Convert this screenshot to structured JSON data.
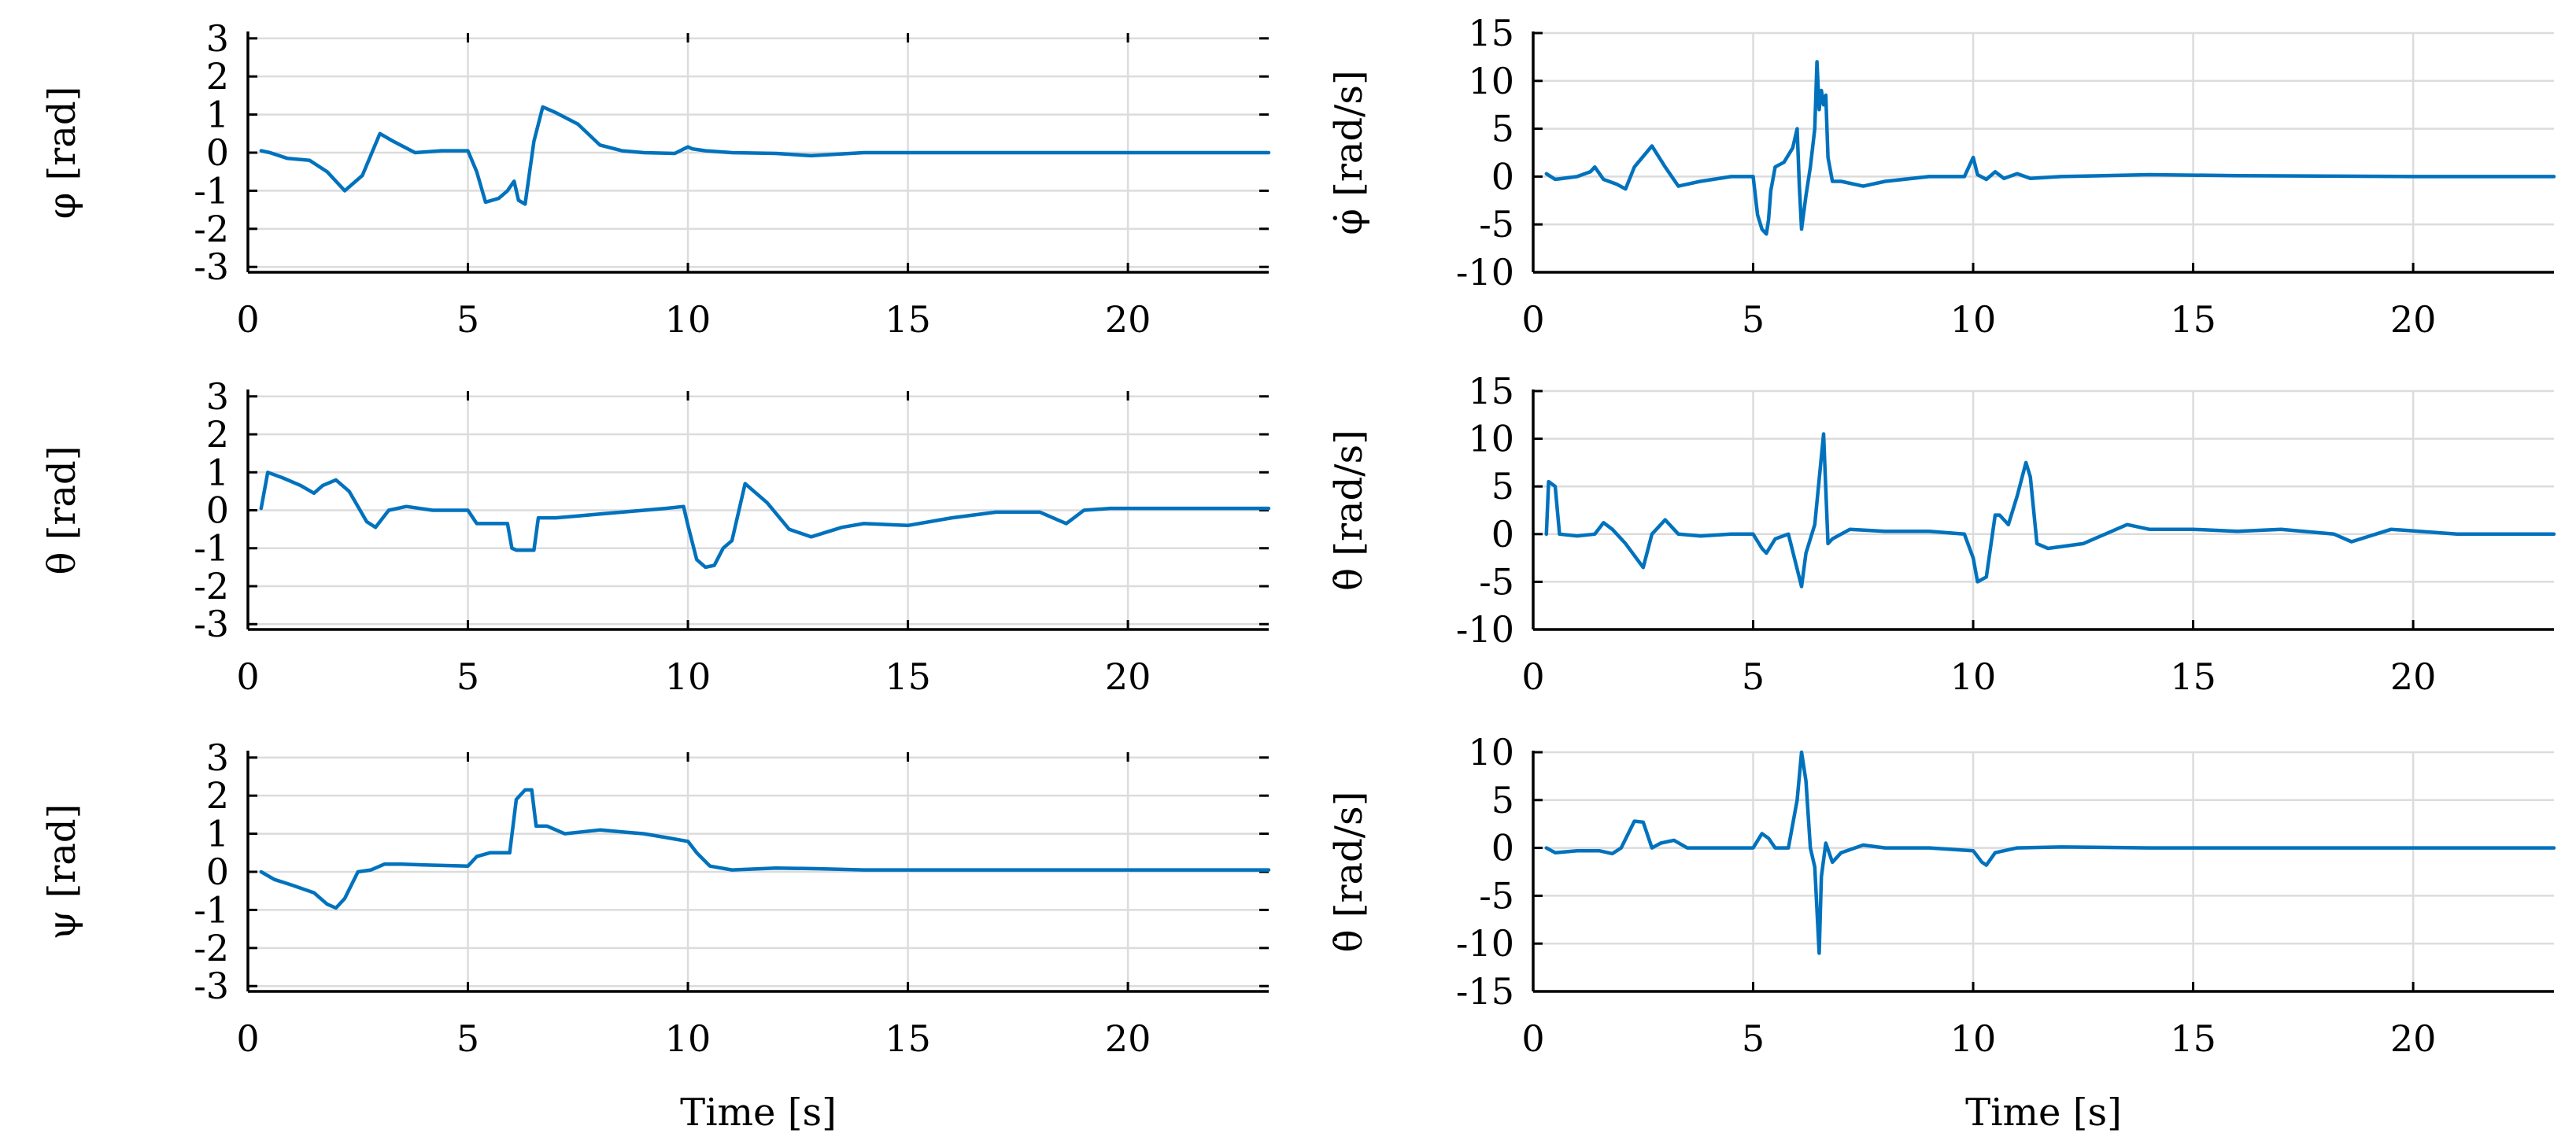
{
  "colors": {
    "line": "#0072BD",
    "grid": "#dcdcdc",
    "axis": "#000000"
  },
  "xlabel": "Time [s]",
  "chart_data": [
    {
      "type": "line",
      "ylabel": "φ [rad]",
      "xlim": [
        0,
        23.2
      ],
      "ylim": [
        -3.14,
        3.14
      ],
      "xticks": [
        0,
        5,
        10,
        15,
        20
      ],
      "xtick_labels": [
        "0",
        "5",
        "10",
        "15",
        "20"
      ],
      "yticks": [
        3,
        2,
        1,
        0,
        -1,
        -2,
        -3
      ],
      "ytick_labels": [
        "3",
        "2",
        "1",
        "0",
        "-1",
        "-2",
        "-3"
      ],
      "x": [
        0.3,
        0.5,
        0.9,
        1.4,
        1.8,
        2.2,
        2.6,
        3.0,
        3.3,
        3.8,
        4.4,
        5.0,
        5.2,
        5.4,
        5.7,
        5.9,
        6.05,
        6.15,
        6.3,
        6.5,
        6.7,
        7.0,
        7.5,
        8.0,
        8.5,
        9.0,
        9.7,
        10.0,
        10.1,
        10.4,
        11.0,
        12.0,
        12.8,
        14.0,
        16.0,
        18.0,
        20.0,
        23.2
      ],
      "y": [
        0.05,
        0.0,
        -0.15,
        -0.2,
        -0.5,
        -1.0,
        -0.6,
        0.5,
        0.3,
        0.0,
        0.05,
        0.05,
        -0.5,
        -1.3,
        -1.2,
        -1.0,
        -0.75,
        -1.25,
        -1.35,
        0.3,
        1.2,
        1.05,
        0.75,
        0.2,
        0.05,
        0.0,
        -0.02,
        0.15,
        0.1,
        0.05,
        0.0,
        -0.02,
        -0.08,
        0.0,
        0.0,
        0.0,
        0.0,
        0.0
      ]
    },
    {
      "type": "line",
      "ylabel": "φ̇ [rad/s]",
      "xlim": [
        0,
        23.2
      ],
      "ylim": [
        -10,
        15
      ],
      "xticks": [
        0,
        5,
        10,
        15,
        20
      ],
      "xtick_labels": [
        "0",
        "5",
        "10",
        "15",
        "20"
      ],
      "yticks": [
        15,
        10,
        5,
        0,
        -5,
        -10
      ],
      "ytick_labels": [
        "15",
        "10",
        "5",
        "0",
        "-5",
        "-10"
      ],
      "x": [
        0.3,
        0.5,
        1.0,
        1.3,
        1.4,
        1.6,
        1.9,
        2.1,
        2.3,
        2.7,
        3.0,
        3.3,
        3.8,
        4.5,
        5.0,
        5.1,
        5.2,
        5.3,
        5.35,
        5.4,
        5.5,
        5.7,
        5.9,
        6.0,
        6.05,
        6.1,
        6.2,
        6.3,
        6.4,
        6.45,
        6.5,
        6.55,
        6.6,
        6.65,
        6.7,
        6.8,
        7.0,
        7.5,
        8.0,
        9.0,
        9.8,
        10.0,
        10.1,
        10.3,
        10.5,
        10.7,
        11.0,
        11.3,
        12.0,
        14.0,
        16.0,
        20.0,
        23.2
      ],
      "y": [
        0.3,
        -0.3,
        0.0,
        0.5,
        1.0,
        -0.3,
        -0.8,
        -1.3,
        1.0,
        3.2,
        1.0,
        -1.0,
        -0.5,
        0.0,
        0.0,
        -4.0,
        -5.5,
        -6.0,
        -4.5,
        -1.5,
        1.0,
        1.5,
        3.0,
        5.0,
        -1.0,
        -5.5,
        -2.0,
        1.0,
        5.0,
        12.0,
        7.0,
        9.0,
        7.5,
        8.5,
        2.0,
        -0.5,
        -0.5,
        -1.0,
        -0.5,
        0.0,
        0.0,
        2.0,
        0.2,
        -0.3,
        0.5,
        -0.2,
        0.3,
        -0.2,
        0.0,
        0.2,
        0.1,
        0.0,
        0.0
      ]
    },
    {
      "type": "line",
      "ylabel": "θ [rad]",
      "xlim": [
        0,
        23.2
      ],
      "ylim": [
        -3.14,
        3.14
      ],
      "xticks": [
        0,
        5,
        10,
        15,
        20
      ],
      "xtick_labels": [
        "0",
        "5",
        "10",
        "15",
        "20"
      ],
      "yticks": [
        3,
        2,
        1,
        0,
        -1,
        -2,
        -3
      ],
      "ytick_labels": [
        "3",
        "2",
        "1",
        "0",
        "-1",
        "-2",
        "-3"
      ],
      "x": [
        0.3,
        0.45,
        0.8,
        1.2,
        1.5,
        1.7,
        2.0,
        2.3,
        2.7,
        2.9,
        3.2,
        3.6,
        4.2,
        5.0,
        5.2,
        5.5,
        5.9,
        6.0,
        6.1,
        6.5,
        6.6,
        7.0,
        7.5,
        8.0,
        8.5,
        9.0,
        9.5,
        9.9,
        10.0,
        10.2,
        10.4,
        10.6,
        10.8,
        11.0,
        11.3,
        11.8,
        12.3,
        12.8,
        13.5,
        14.0,
        15.0,
        16.0,
        17.0,
        18.0,
        18.6,
        19.0,
        19.6,
        21.0,
        23.2
      ],
      "y": [
        0.05,
        1.0,
        0.85,
        0.65,
        0.45,
        0.65,
        0.8,
        0.5,
        -0.3,
        -0.45,
        0.0,
        0.1,
        0.0,
        0.0,
        -0.35,
        -0.35,
        -0.35,
        -1.0,
        -1.05,
        -1.05,
        -0.2,
        -0.2,
        -0.15,
        -0.1,
        -0.05,
        0.0,
        0.05,
        0.1,
        -0.4,
        -1.3,
        -1.5,
        -1.45,
        -1.0,
        -0.8,
        0.7,
        0.2,
        -0.5,
        -0.7,
        -0.45,
        -0.35,
        -0.4,
        -0.2,
        -0.05,
        -0.05,
        -0.35,
        0.0,
        0.05,
        0.05,
        0.05
      ]
    },
    {
      "type": "line",
      "ylabel": "θ̇ [rad/s]",
      "xlim": [
        0,
        23.2
      ],
      "ylim": [
        -10,
        15
      ],
      "xticks": [
        0,
        5,
        10,
        15,
        20
      ],
      "xtick_labels": [
        "0",
        "5",
        "10",
        "15",
        "20"
      ],
      "yticks": [
        15,
        10,
        5,
        0,
        -5,
        -10
      ],
      "ytick_labels": [
        "15",
        "10",
        "5",
        "0",
        "-5",
        "-10"
      ],
      "x": [
        0.3,
        0.35,
        0.5,
        0.6,
        1.0,
        1.4,
        1.6,
        1.8,
        2.1,
        2.5,
        2.7,
        3.0,
        3.3,
        3.8,
        4.5,
        5.0,
        5.2,
        5.3,
        5.5,
        5.8,
        6.1,
        6.2,
        6.4,
        6.6,
        6.7,
        6.8,
        7.2,
        8.0,
        9.0,
        9.8,
        10.0,
        10.1,
        10.3,
        10.5,
        10.6,
        10.8,
        11.0,
        11.2,
        11.3,
        11.45,
        11.7,
        12.5,
        13.5,
        14.0,
        15.0,
        16.0,
        17.0,
        18.2,
        18.6,
        19.5,
        21.0,
        23.2
      ],
      "y": [
        0.0,
        5.5,
        5.0,
        0.0,
        -0.2,
        0.0,
        1.2,
        0.5,
        -1.0,
        -3.5,
        0.0,
        1.5,
        0.0,
        -0.2,
        0.0,
        0.0,
        -1.5,
        -2.0,
        -0.5,
        0.0,
        -5.5,
        -2.0,
        1.0,
        10.5,
        -1.0,
        -0.5,
        0.5,
        0.3,
        0.3,
        0.0,
        -2.5,
        -5.0,
        -4.5,
        2.0,
        2.0,
        1.0,
        4.0,
        7.5,
        6.0,
        -1.0,
        -1.5,
        -1.0,
        1.0,
        0.5,
        0.5,
        0.3,
        0.5,
        0.0,
        -0.8,
        0.5,
        0.0,
        0.0
      ]
    },
    {
      "type": "line",
      "ylabel": "ψ [rad]",
      "xlim": [
        0,
        23.2
      ],
      "ylim": [
        -3.14,
        3.14
      ],
      "xticks": [
        0,
        5,
        10,
        15,
        20
      ],
      "xtick_labels": [
        "0",
        "5",
        "10",
        "15",
        "20"
      ],
      "yticks": [
        3,
        2,
        1,
        0,
        -1,
        -2,
        -3
      ],
      "ytick_labels": [
        "3",
        "2",
        "1",
        "0",
        "-1",
        "-2",
        "-3"
      ],
      "x": [
        0.3,
        0.6,
        1.0,
        1.5,
        1.8,
        2.0,
        2.2,
        2.5,
        2.8,
        3.1,
        3.5,
        4.0,
        5.0,
        5.2,
        5.5,
        5.8,
        5.95,
        6.1,
        6.3,
        6.45,
        6.55,
        6.8,
        7.2,
        7.6,
        8.0,
        8.5,
        9.0,
        9.5,
        10.0,
        10.2,
        10.5,
        11.0,
        12.0,
        13.0,
        14.0,
        16.0,
        20.0,
        23.2
      ],
      "y": [
        0.0,
        -0.2,
        -0.35,
        -0.55,
        -0.85,
        -0.95,
        -0.7,
        0.0,
        0.05,
        0.2,
        0.2,
        0.18,
        0.15,
        0.4,
        0.5,
        0.5,
        0.5,
        1.9,
        2.15,
        2.15,
        1.2,
        1.2,
        1.0,
        1.05,
        1.1,
        1.05,
        1.0,
        0.9,
        0.8,
        0.5,
        0.15,
        0.05,
        0.1,
        0.08,
        0.05,
        0.05,
        0.05,
        0.05
      ]
    },
    {
      "type": "line",
      "ylabel": "θ̇ [rad/s]",
      "xlim": [
        0,
        23.2
      ],
      "ylim": [
        -15,
        10
      ],
      "xticks": [
        0,
        5,
        10,
        15,
        20
      ],
      "xtick_labels": [
        "0",
        "5",
        "10",
        "15",
        "20"
      ],
      "yticks": [
        10,
        5,
        0,
        -5,
        -10,
        -15
      ],
      "ytick_labels": [
        "10",
        "5",
        "0",
        "-5",
        "-10",
        "-15"
      ],
      "x": [
        0.3,
        0.5,
        1.0,
        1.5,
        1.8,
        2.0,
        2.3,
        2.5,
        2.7,
        2.9,
        3.2,
        3.5,
        4.0,
        4.5,
        5.0,
        5.2,
        5.35,
        5.5,
        5.8,
        6.0,
        6.1,
        6.2,
        6.3,
        6.4,
        6.5,
        6.55,
        6.65,
        6.8,
        7.0,
        7.5,
        8.0,
        9.0,
        10.0,
        10.2,
        10.3,
        10.5,
        11.0,
        12.0,
        14.0,
        18.0,
        23.2
      ],
      "y": [
        0.0,
        -0.5,
        -0.3,
        -0.3,
        -0.6,
        0.0,
        2.8,
        2.7,
        0.0,
        0.5,
        0.8,
        0.0,
        0.0,
        0.0,
        0.0,
        1.5,
        1.0,
        0.0,
        0.0,
        5.0,
        10.0,
        7.0,
        0.0,
        -2.0,
        -11.0,
        -3.0,
        0.5,
        -1.5,
        -0.5,
        0.3,
        0.0,
        0.0,
        -0.3,
        -1.5,
        -1.8,
        -0.5,
        0.0,
        0.1,
        0.0,
        0.0,
        0.0
      ]
    }
  ]
}
